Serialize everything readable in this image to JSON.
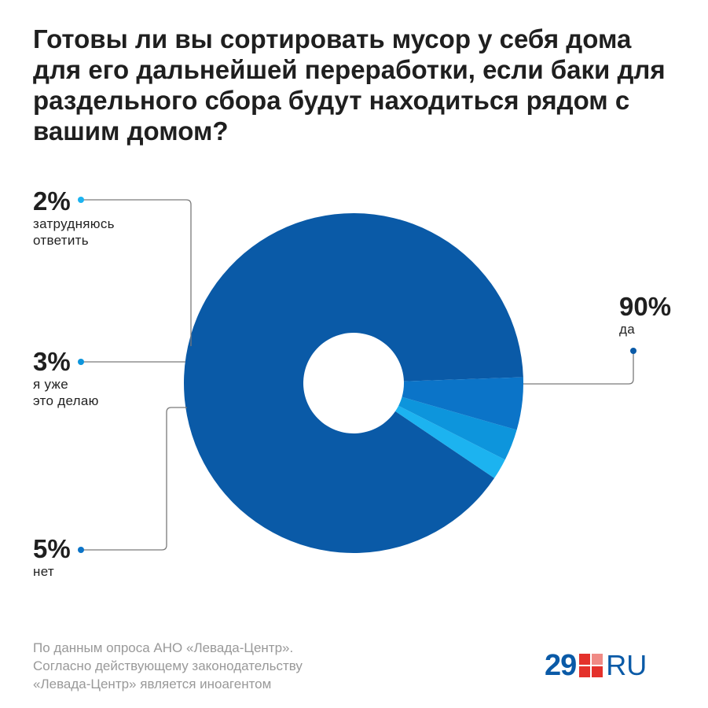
{
  "title": "Готовы ли вы сортировать мусор у себя дома для его дальнейшей переработки, если баки для раздельного сбора будут находиться рядом с вашим домом?",
  "chart_data": {
    "type": "pie",
    "title": "Готовы ли вы сортировать мусор у себя дома для его дальнейшей переработки, если баки для раздельного сбора будут находиться рядом с вашим домом?",
    "unit": "%",
    "slices": [
      {
        "label": "да",
        "value": 90,
        "display": "90%",
        "color": "#0a5aa7"
      },
      {
        "label": "затрудняюсь ответить",
        "value": 2,
        "display": "2%",
        "color": "#1cb3f0"
      },
      {
        "label": "я уже это делаю",
        "value": 3,
        "display": "3%",
        "color": "#0d95dc"
      },
      {
        "label": "нет",
        "value": 5,
        "display": "5%",
        "color": "#0b74c8"
      }
    ],
    "caption_lines": {
      "затрудняюсь ответить": [
        "затрудняюсь",
        "ответить"
      ],
      "я уже это делаю": [
        "я уже",
        "это делаю"
      ],
      "нет": [
        "нет"
      ],
      "да": [
        "да"
      ]
    }
  },
  "source": {
    "lines": [
      "По данным опроса АНО «Левада-Центр».",
      "Согласно действующему законодательству",
      "«Левада-Центр» является иноагентом"
    ]
  },
  "logo": {
    "number": "29",
    "suffix": "RU",
    "colors": {
      "blue": "#0a5aa7",
      "red": "#e4312b",
      "pink": "#f08a85"
    }
  },
  "leader_color": "#7a7a7a"
}
